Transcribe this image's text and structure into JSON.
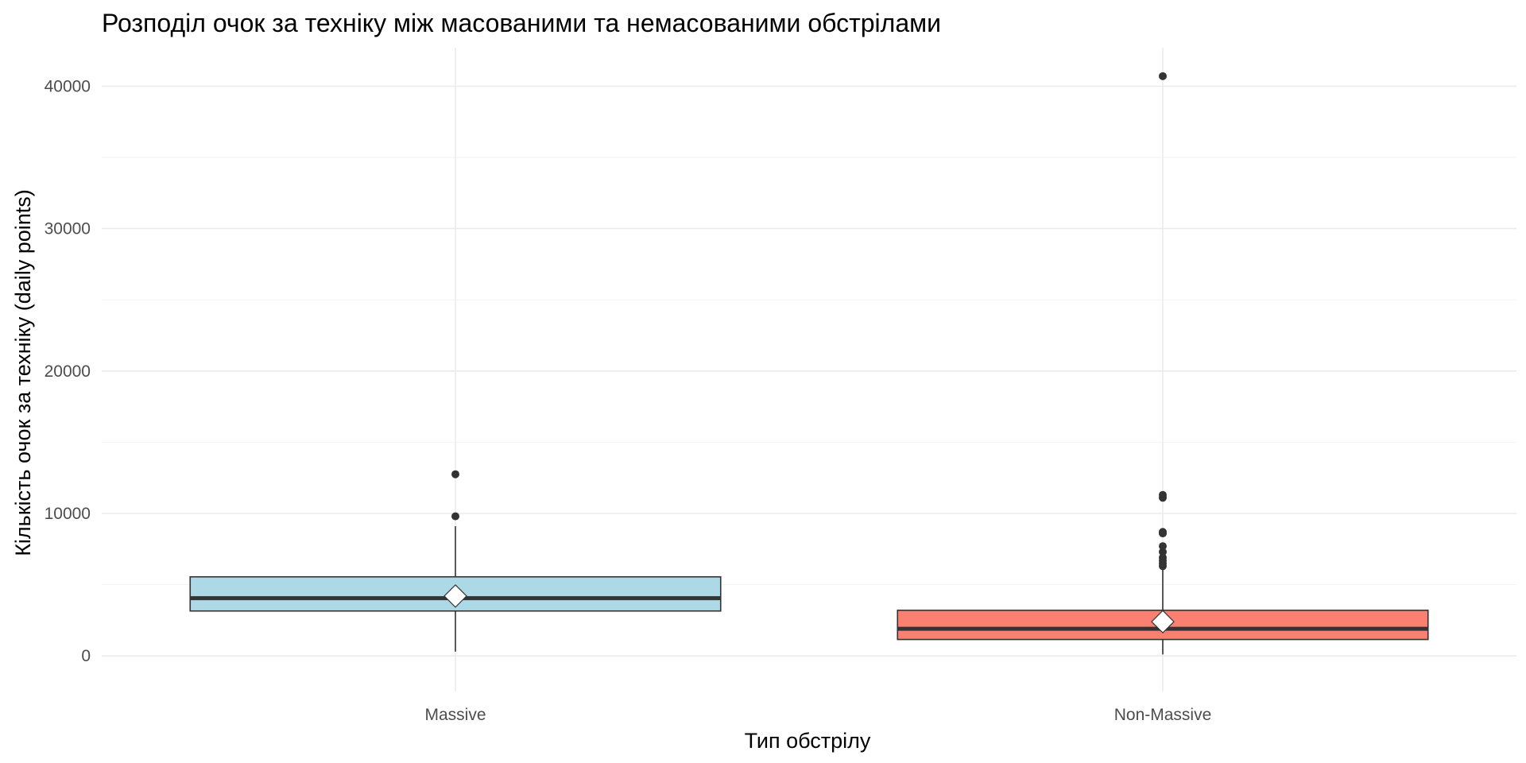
{
  "chart_data": {
    "type": "boxplot",
    "title": "Розподіл очок за техніку між масованими та немасованими обстрілами",
    "xlabel": "Тип обстрілу",
    "ylabel": "Кількість очок за техніку (daily points)",
    "categories": [
      "Massive",
      "Non-Massive"
    ],
    "ylim": [
      -2500,
      42700
    ],
    "yticks": [
      0,
      10000,
      20000,
      30000,
      40000
    ],
    "grid": true,
    "legend": "none",
    "boxes": [
      {
        "category": "Massive",
        "color": "#add8e6",
        "whisker_low": 300,
        "q1": 3150,
        "median": 4050,
        "q3": 5550,
        "whisker_high": 9100,
        "mean": 4200,
        "outliers": [
          9800,
          12750
        ]
      },
      {
        "category": "Non-Massive",
        "color": "#fa8072",
        "whisker_low": 100,
        "q1": 1150,
        "median": 1900,
        "q3": 3200,
        "whisker_high": 6100,
        "mean": 2400,
        "outliers": [
          6300,
          6500,
          6700,
          6900,
          7300,
          7700,
          8600,
          8700,
          11100,
          11300,
          40700
        ]
      }
    ],
    "colors": {
      "box_outline": "#333333",
      "median_line": "#333333",
      "mean_marker_fill": "#ffffff",
      "outlier": "#333333"
    }
  }
}
